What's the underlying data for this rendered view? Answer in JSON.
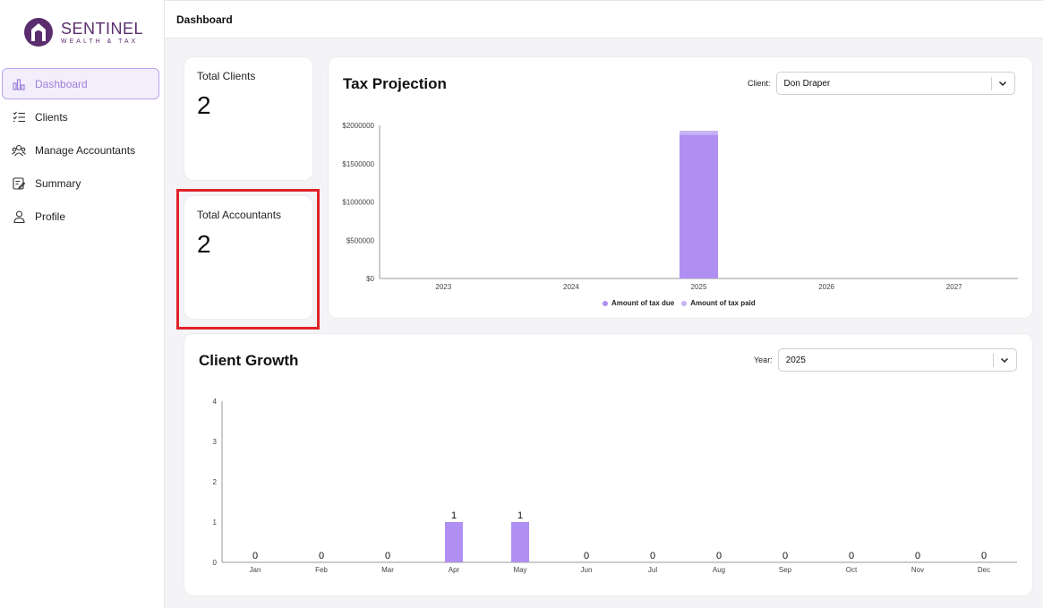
{
  "brand": {
    "name": "SENTINEL",
    "subtitle": "WEALTH & TAX",
    "color": "#5a2d6e"
  },
  "sidebar": {
    "items": [
      {
        "label": "Dashboard",
        "icon": "bar-chart-icon",
        "active": true
      },
      {
        "label": "Clients",
        "icon": "checklist-icon",
        "active": false
      },
      {
        "label": "Manage Accountants",
        "icon": "users-icon",
        "active": false
      },
      {
        "label": "Summary",
        "icon": "document-edit-icon",
        "active": false
      },
      {
        "label": "Profile",
        "icon": "user-icon",
        "active": false
      }
    ]
  },
  "header": {
    "title": "Dashboard"
  },
  "stats": {
    "total_clients": {
      "label": "Total Clients",
      "value": "2"
    },
    "total_accountants": {
      "label": "Total Accountants",
      "value": "2"
    }
  },
  "tax_projection": {
    "title": "Tax Projection",
    "filter_label": "Client:",
    "filter_value": "Don Draper",
    "legend": [
      "Amount of tax due",
      "Amount of tax paid"
    ]
  },
  "client_growth": {
    "title": "Client Growth",
    "filter_label": "Year:",
    "filter_value": "2025"
  },
  "colors": {
    "accent": "#b08ff2",
    "accent_light": "#c8b3f5",
    "highlight": "#e0232b"
  },
  "chart_data": [
    {
      "type": "bar",
      "title": "Tax Projection",
      "categories": [
        "2023",
        "2024",
        "2025",
        "2026",
        "2027"
      ],
      "y_tick_labels": [
        "$0",
        "$500000",
        "$1000000",
        "$1500000",
        "$2000000"
      ],
      "ylim": [
        0,
        2000000
      ],
      "stacked": true,
      "series": [
        {
          "name": "Amount of tax due",
          "values": [
            0,
            0,
            1880000,
            0,
            0
          ],
          "color": "#b08ff2"
        },
        {
          "name": "Amount of tax paid",
          "values": [
            0,
            0,
            50000,
            0,
            0
          ],
          "color": "#c8b3f5"
        }
      ],
      "legend": "bottom-center",
      "grid": false
    },
    {
      "type": "bar",
      "title": "Client Growth",
      "categories": [
        "Jan",
        "Feb",
        "Mar",
        "Apr",
        "May",
        "Jun",
        "Jul",
        "Aug",
        "Sep",
        "Oct",
        "Nov",
        "Dec"
      ],
      "values": [
        0,
        0,
        0,
        1,
        1,
        0,
        0,
        0,
        0,
        0,
        0,
        0
      ],
      "data_labels": [
        "0",
        "0",
        "0",
        "1",
        "1",
        "0",
        "0",
        "0",
        "0",
        "0",
        "0",
        "0"
      ],
      "y_tick_labels": [
        "0",
        "1",
        "2",
        "3",
        "4"
      ],
      "ylim": [
        0,
        4
      ],
      "grid": false
    }
  ]
}
